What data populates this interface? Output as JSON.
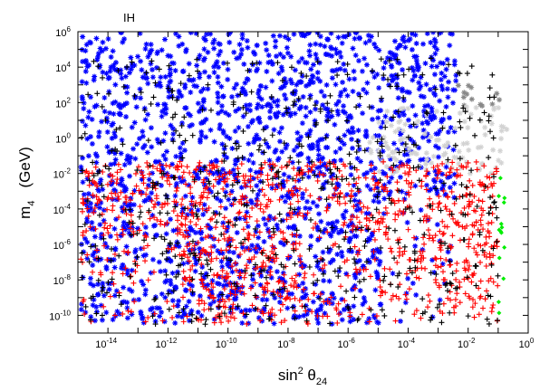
{
  "chart_data": {
    "type": "scatter",
    "annotation": "IH",
    "xlabel": {
      "base": "sin",
      "sup": "2",
      "symbol": " θ",
      "sub": "24"
    },
    "ylabel": {
      "base": "m",
      "sub": "4",
      "unit": "(GeV)"
    },
    "x_scale": "log",
    "y_scale": "log",
    "xlim": [
      1e-15,
      1
    ],
    "ylim": [
      1e-11,
      1000000.0
    ],
    "x_ticks": [
      {
        "value": 1e-14,
        "base": "10",
        "exp": "-14"
      },
      {
        "value": 1e-12,
        "base": "10",
        "exp": "-12"
      },
      {
        "value": 1e-10,
        "base": "10",
        "exp": "-10"
      },
      {
        "value": 1e-08,
        "base": "10",
        "exp": "-8"
      },
      {
        "value": 1e-06,
        "base": "10",
        "exp": "-6"
      },
      {
        "value": 0.0001,
        "base": "10",
        "exp": "-4"
      },
      {
        "value": 0.01,
        "base": "10",
        "exp": "-2"
      },
      {
        "value": 1,
        "base": "10",
        "exp": "0"
      }
    ],
    "y_ticks": [
      {
        "value": 1e-10,
        "base": "10",
        "exp": "-10"
      },
      {
        "value": 1e-08,
        "base": "10",
        "exp": "-8"
      },
      {
        "value": 1e-06,
        "base": "10",
        "exp": "-6"
      },
      {
        "value": 0.0001,
        "base": "10",
        "exp": "-4"
      },
      {
        "value": 0.01,
        "base": "10",
        "exp": "-2"
      },
      {
        "value": 1,
        "base": "10",
        "exp": "0"
      },
      {
        "value": 100.0,
        "base": "10",
        "exp": "2"
      },
      {
        "value": 10000.0,
        "base": "10",
        "exp": "4"
      },
      {
        "value": 1000000.0,
        "base": "10",
        "exp": "6"
      }
    ],
    "grid": false,
    "legend": "none",
    "series": [
      {
        "color": "#0000ff",
        "marker": "star",
        "regions": [
          {
            "x_log": [
              -14.9,
              -2.4
            ],
            "y_log": [
              -10.5,
              6.0
            ]
          }
        ]
      },
      {
        "color": "#888888",
        "marker": "star",
        "regions": [
          {
            "x_log": [
              -2.4,
              -0.7
            ],
            "y_log": [
              1.8,
              3.0
            ]
          }
        ]
      },
      {
        "color": "#d3d3d3",
        "marker": "star",
        "regions": [
          {
            "x_log": [
              -5.3,
              -0.7
            ],
            "y_log": [
              -2.0,
              1.8
            ]
          }
        ]
      },
      {
        "color": "#ff0000",
        "marker": "plus",
        "regions": [
          {
            "x_log": [
              -14.9,
              -1.0
            ],
            "y_log": [
              -10.5,
              -1.3
            ]
          }
        ]
      },
      {
        "color": "#000000",
        "marker": "plus",
        "regions": [
          {
            "x_log": [
              -14.9,
              -1.0
            ],
            "y_log": [
              -10.5,
              4.5
            ]
          }
        ]
      },
      {
        "color": "#00ee00",
        "marker": "diamond",
        "regions": [
          {
            "x_log": [
              -1.0,
              -0.75
            ],
            "y_log": [
              -10.5,
              -2.0
            ]
          }
        ]
      }
    ]
  }
}
